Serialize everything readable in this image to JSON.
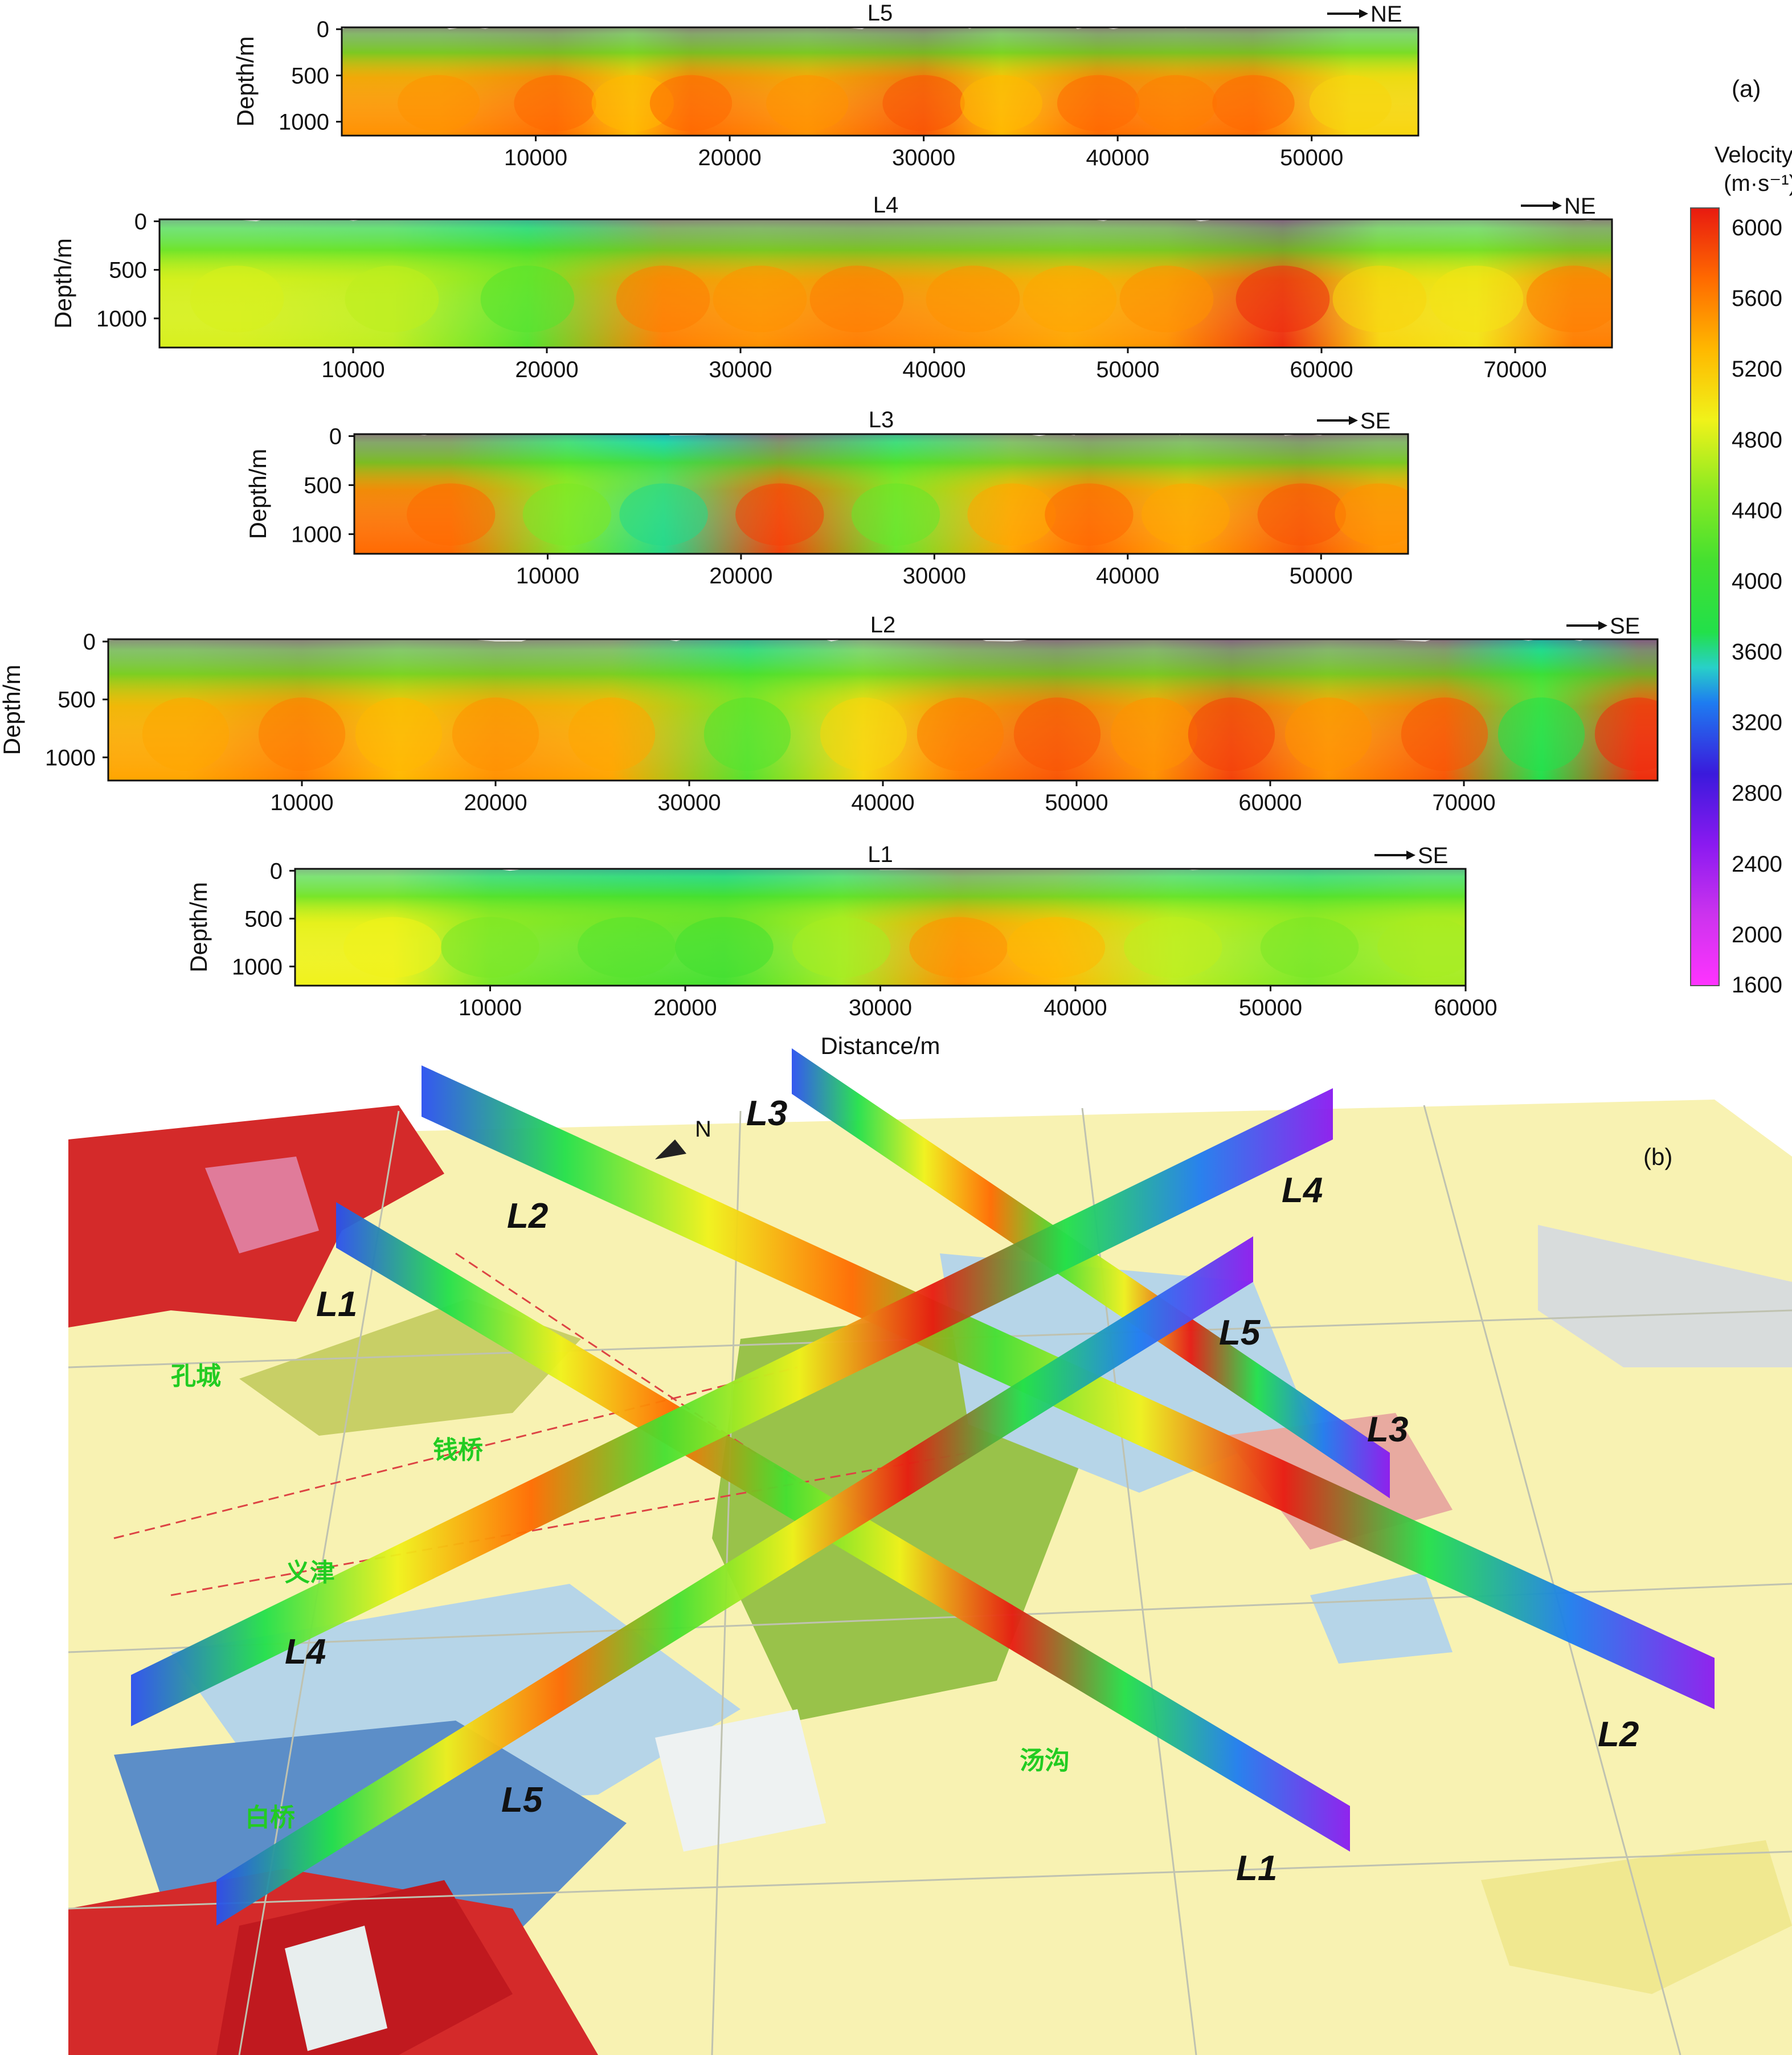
{
  "panel_labels": {
    "a": "(a)",
    "b": "(b)"
  },
  "chart_data": [
    {
      "type": "heatmap",
      "title": "L5",
      "direction": "NE",
      "xlabel": "",
      "ylabel": "Depth/m",
      "xlim": [
        0,
        55500
      ],
      "ylim": [
        1150,
        -20
      ],
      "xticks": [
        10000,
        20000,
        30000,
        40000,
        50000
      ],
      "yticks": [
        0,
        500,
        1000
      ],
      "features": [
        {
          "x": 5000,
          "v": 5400
        },
        {
          "x": 11000,
          "v": 5600
        },
        {
          "x": 15000,
          "v": 5200
        },
        {
          "x": 18000,
          "v": 5600
        },
        {
          "x": 24000,
          "v": 5400
        },
        {
          "x": 30000,
          "v": 5700
        },
        {
          "x": 34000,
          "v": 5200
        },
        {
          "x": 39000,
          "v": 5600
        },
        {
          "x": 43000,
          "v": 5500
        },
        {
          "x": 47000,
          "v": 5600
        },
        {
          "x": 52000,
          "v": 5000
        }
      ]
    },
    {
      "type": "heatmap",
      "title": "L4",
      "direction": "NE",
      "xlabel": "",
      "ylabel": "Depth/m",
      "xlim": [
        0,
        75000
      ],
      "ylim": [
        1300,
        -20
      ],
      "xticks": [
        10000,
        20000,
        30000,
        40000,
        50000,
        60000,
        70000
      ],
      "yticks": [
        0,
        500,
        1000
      ],
      "features": [
        {
          "x": 4000,
          "v": 4700
        },
        {
          "x": 12000,
          "v": 4600
        },
        {
          "x": 19000,
          "v": 4100
        },
        {
          "x": 26000,
          "v": 5500
        },
        {
          "x": 31000,
          "v": 5400
        },
        {
          "x": 36000,
          "v": 5500
        },
        {
          "x": 42000,
          "v": 5400
        },
        {
          "x": 47000,
          "v": 5300
        },
        {
          "x": 52000,
          "v": 5400
        },
        {
          "x": 58000,
          "v": 5900
        },
        {
          "x": 63000,
          "v": 5000
        },
        {
          "x": 68000,
          "v": 4900
        },
        {
          "x": 73000,
          "v": 5500
        }
      ]
    },
    {
      "type": "heatmap",
      "title": "L3",
      "direction": "SE",
      "xlabel": "",
      "ylabel": "Depth/m",
      "xlim": [
        0,
        54500
      ],
      "ylim": [
        1200,
        -20
      ],
      "xticks": [
        10000,
        20000,
        30000,
        40000,
        50000
      ],
      "yticks": [
        0,
        500,
        1000
      ],
      "features": [
        {
          "x": 5000,
          "v": 5600
        },
        {
          "x": 11000,
          "v": 4300
        },
        {
          "x": 16000,
          "v": 3500
        },
        {
          "x": 22000,
          "v": 5800
        },
        {
          "x": 28000,
          "v": 4200
        },
        {
          "x": 34000,
          "v": 5300
        },
        {
          "x": 38000,
          "v": 5600
        },
        {
          "x": 43000,
          "v": 5300
        },
        {
          "x": 49000,
          "v": 5700
        },
        {
          "x": 53000,
          "v": 5400
        }
      ]
    },
    {
      "type": "heatmap",
      "title": "L2",
      "direction": "SE",
      "xlabel": "",
      "ylabel": "Depth/m",
      "xlim": [
        0,
        80000
      ],
      "ylim": [
        1200,
        -20
      ],
      "xticks": [
        10000,
        20000,
        30000,
        40000,
        50000,
        60000,
        70000
      ],
      "yticks": [
        0,
        500,
        1000
      ],
      "features": [
        {
          "x": 4000,
          "v": 5300
        },
        {
          "x": 10000,
          "v": 5500
        },
        {
          "x": 15000,
          "v": 5200
        },
        {
          "x": 20000,
          "v": 5400
        },
        {
          "x": 26000,
          "v": 5300
        },
        {
          "x": 33000,
          "v": 4100
        },
        {
          "x": 39000,
          "v": 5000
        },
        {
          "x": 44000,
          "v": 5500
        },
        {
          "x": 49000,
          "v": 5700
        },
        {
          "x": 54000,
          "v": 5400
        },
        {
          "x": 58000,
          "v": 5800
        },
        {
          "x": 63000,
          "v": 5400
        },
        {
          "x": 69000,
          "v": 5700
        },
        {
          "x": 74000,
          "v": 3600
        },
        {
          "x": 79000,
          "v": 5900
        }
      ]
    },
    {
      "type": "heatmap",
      "title": "L1",
      "direction": "SE",
      "xlabel": "Distance/m",
      "ylabel": "Depth/m",
      "xlim": [
        0,
        60000
      ],
      "ylim": [
        1200,
        -20
      ],
      "xticks": [
        10000,
        20000,
        30000,
        40000,
        50000,
        60000
      ],
      "yticks": [
        0,
        500,
        1000
      ],
      "features": [
        {
          "x": 5000,
          "v": 4800
        },
        {
          "x": 10000,
          "v": 4300
        },
        {
          "x": 17000,
          "v": 4100
        },
        {
          "x": 22000,
          "v": 4000
        },
        {
          "x": 28000,
          "v": 4500
        },
        {
          "x": 34000,
          "v": 5400
        },
        {
          "x": 39000,
          "v": 5200
        },
        {
          "x": 45000,
          "v": 4600
        },
        {
          "x": 52000,
          "v": 4300
        },
        {
          "x": 58000,
          "v": 4500
        }
      ]
    }
  ],
  "colorbar": {
    "title_line1": "Velocity /",
    "title_line2": "(m·s⁻¹)",
    "ticks": [
      6000,
      5600,
      5200,
      4800,
      4400,
      4000,
      3600,
      3200,
      2800,
      2400,
      2000,
      1600
    ],
    "colors": [
      {
        "v": 1600,
        "c": "#ff33ff"
      },
      {
        "v": 2000,
        "c": "#cc33ee"
      },
      {
        "v": 2400,
        "c": "#8a1af0"
      },
      {
        "v": 2800,
        "c": "#3a1adc"
      },
      {
        "v": 3200,
        "c": "#1e7cf0"
      },
      {
        "v": 3400,
        "c": "#28d0c8"
      },
      {
        "v": 3600,
        "c": "#22e04a"
      },
      {
        "v": 4000,
        "c": "#44e030"
      },
      {
        "v": 4400,
        "c": "#8cea22"
      },
      {
        "v": 4800,
        "c": "#f0f21a"
      },
      {
        "v": 5200,
        "c": "#ffb800"
      },
      {
        "v": 5600,
        "c": "#ff6a00"
      },
      {
        "v": 6000,
        "c": "#e81a10"
      }
    ]
  },
  "map_labels": {
    "lines": [
      "L1",
      "L2",
      "L3",
      "L4",
      "L5"
    ],
    "places": [
      "孔城",
      "钱桥",
      "义津",
      "汤沟",
      "白桥"
    ],
    "north": "N"
  }
}
